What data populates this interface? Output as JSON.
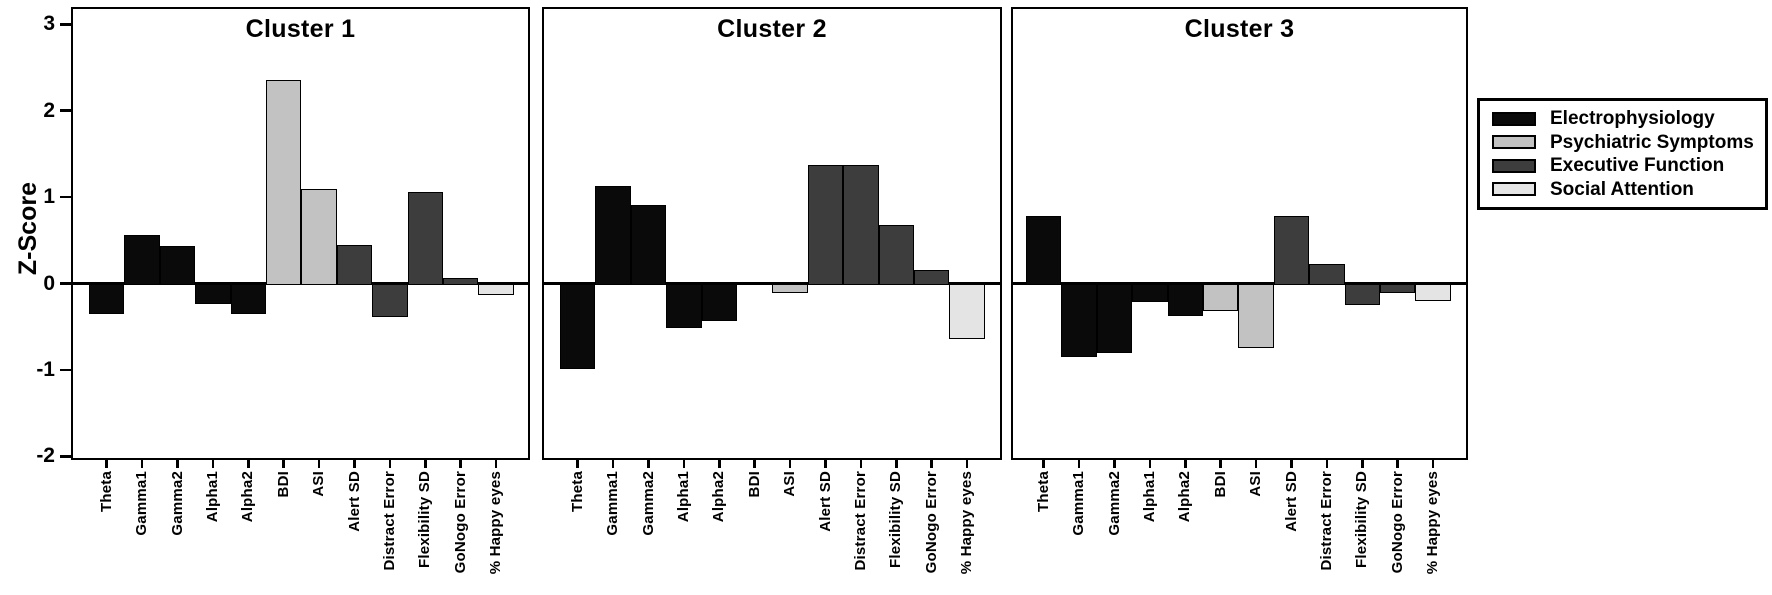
{
  "figure": {
    "background": "#ffffff",
    "kind": "three-panel z-score bar chart"
  },
  "chart_data": {
    "type": "bar",
    "ylabel": "Z-Score",
    "ylim": [
      -2.05,
      3.2
    ],
    "y_ticks": [
      3,
      2,
      1,
      0,
      -1,
      -2
    ],
    "y_tick_labels": [
      "3",
      "2",
      "1",
      "0",
      "-1",
      "-2"
    ],
    "grid": false,
    "legend_position": "outside-right",
    "categories": [
      "Theta",
      "Gamma1",
      "Gamma2",
      "Alpha1",
      "Alpha2",
      "BDI",
      "ASI",
      "Alert SD",
      "Distract Error",
      "Flexibility SD",
      "GoNogo Error",
      "% Happy eyes"
    ],
    "category_group_index": [
      0,
      0,
      0,
      0,
      0,
      1,
      1,
      2,
      2,
      2,
      2,
      3
    ],
    "groups": [
      {
        "name": "Electrophysiology",
        "color": "#0a0a0a"
      },
      {
        "name": "Psychiatric Symptoms",
        "color": "#c2c2c2"
      },
      {
        "name": "Executive Function",
        "color": "#3d3d3d"
      },
      {
        "name": "Social Attention",
        "color": "#e4e4e4"
      }
    ],
    "panels": [
      {
        "title": "Cluster 1",
        "values": [
          -0.33,
          0.56,
          0.43,
          -0.22,
          -0.33,
          2.36,
          1.09,
          0.44,
          -0.37,
          1.06,
          0.06,
          -0.12
        ]
      },
      {
        "title": "Cluster 2",
        "values": [
          -0.97,
          1.13,
          0.91,
          -0.5,
          -0.42,
          0.0,
          -0.09,
          1.37,
          1.37,
          0.68,
          0.16,
          -0.63
        ]
      },
      {
        "title": "Cluster 3",
        "values": [
          0.78,
          -0.83,
          -0.79,
          -0.2,
          -0.36,
          -0.3,
          -0.73,
          0.78,
          0.23,
          -0.23,
          -0.09,
          -0.19
        ]
      }
    ]
  }
}
